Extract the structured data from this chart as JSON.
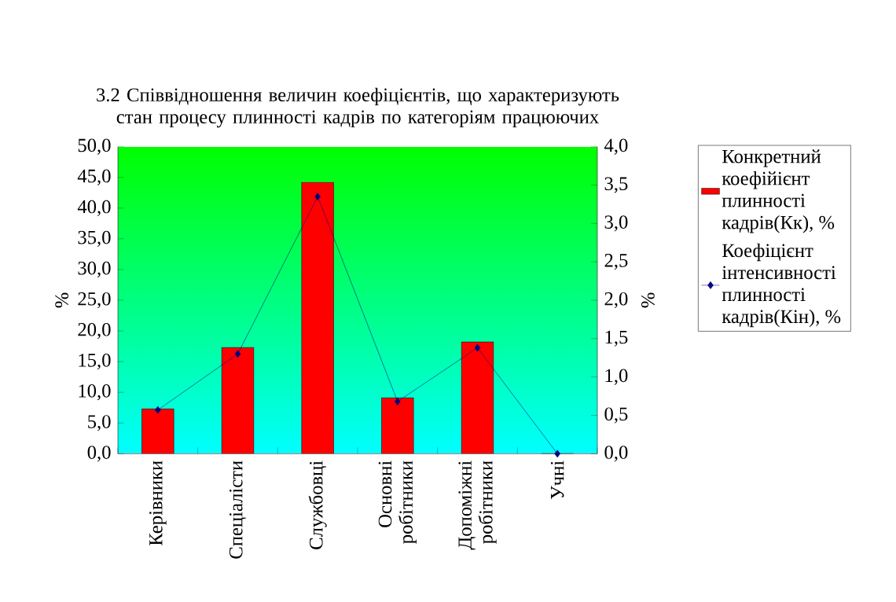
{
  "chart_data": {
    "type": "bar",
    "title": "3.2 Співвідношення величин коефіцієнтів, що характеризують стан процесу плинності кадрів по категоріям працюючих",
    "ylabel": "%",
    "y2label": "%",
    "categories": [
      "Керівники",
      "Спеціалісти",
      "Службовці",
      "Основні робітники",
      "Допоміжні робітники",
      "Учні"
    ],
    "series": [
      {
        "name": "Конкретний коефійієнт плинності кадрів(Кк), %",
        "color": "#ff0000",
        "values": [
          7.3,
          17.3,
          44.2,
          9.1,
          18.2,
          0
        ]
      },
      {
        "name": "Коефіцієнт інтенсивності плинності кадрів(Кін), %",
        "type": "line",
        "axis": "y2",
        "color": "#000080",
        "values": [
          0.57,
          1.3,
          3.35,
          0.68,
          1.38,
          0
        ]
      }
    ],
    "ylim": [
      0,
      50
    ],
    "yticks": [
      {
        "value": 0,
        "label": "0,0"
      },
      {
        "value": 5,
        "label": "5,0"
      },
      {
        "value": 10,
        "label": "10,0"
      },
      {
        "value": 15,
        "label": "15,0"
      },
      {
        "value": 20,
        "label": "20,0"
      },
      {
        "value": 25,
        "label": "25,0"
      },
      {
        "value": 30,
        "label": "30,0"
      },
      {
        "value": 35,
        "label": "35,0"
      },
      {
        "value": 40,
        "label": "40,0"
      },
      {
        "value": 45,
        "label": "45,0"
      },
      {
        "value": 50,
        "label": "50,0"
      }
    ],
    "y2lim": [
      0,
      4
    ],
    "y2ticks": [
      {
        "value": 0,
        "label": "0,0"
      },
      {
        "value": 0.5,
        "label": "0,5"
      },
      {
        "value": 1,
        "label": "1,0"
      },
      {
        "value": 1.5,
        "label": "1,5"
      },
      {
        "value": 2,
        "label": "2,0"
      },
      {
        "value": 2.5,
        "label": "2,5"
      },
      {
        "value": 3,
        "label": "3,0"
      },
      {
        "value": 3.5,
        "label": "3,5"
      },
      {
        "value": 4,
        "label": "4,0"
      }
    ],
    "marker": "diamond",
    "legend": "right"
  }
}
